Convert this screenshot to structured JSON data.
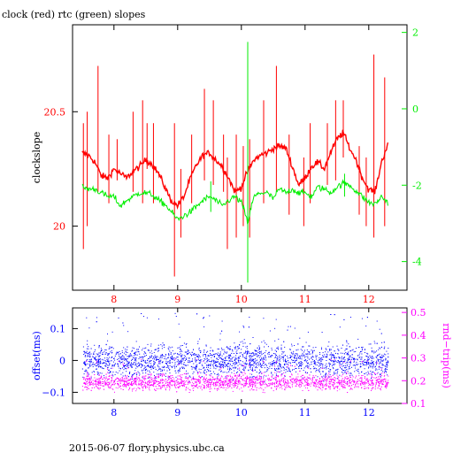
{
  "title": "clock (red) rtc (green) slopes",
  "footer": "2015-06-07 flory.physics.ubc.ca",
  "colors": {
    "clock": "#ff0000",
    "rtc": "#00ee00",
    "offset": "#0000ff",
    "rndtrip": "#ff00ff",
    "axis": "#000000"
  },
  "chart_data": [
    {
      "type": "line",
      "title": "clock (red) rtc (green) slopes",
      "ylabel": "clockslope",
      "y2label": "",
      "xlim": [
        7.35,
        12.6
      ],
      "ylim": [
        19.72,
        20.88
      ],
      "y2lim": [
        -4.75,
        2.2
      ],
      "x_ticks": [
        "8",
        "9",
        "10",
        "11",
        "12"
      ],
      "y_ticks": [
        "20",
        "20.5"
      ],
      "y2_ticks": [
        "2",
        "0",
        "-2",
        "-4"
      ],
      "series": [
        {
          "name": "clock",
          "axis": "left",
          "points": [
            [
              7.5,
              20.32
            ],
            [
              7.6,
              20.31
            ],
            [
              7.7,
              20.28
            ],
            [
              7.8,
              20.22
            ],
            [
              7.9,
              20.21
            ],
            [
              8.0,
              20.25
            ],
            [
              8.1,
              20.23
            ],
            [
              8.2,
              20.21
            ],
            [
              8.3,
              20.24
            ],
            [
              8.4,
              20.26
            ],
            [
              8.5,
              20.29
            ],
            [
              8.6,
              20.27
            ],
            [
              8.7,
              20.23
            ],
            [
              8.8,
              20.17
            ],
            [
              8.9,
              20.11
            ],
            [
              9.0,
              20.09
            ],
            [
              9.1,
              20.13
            ],
            [
              9.2,
              20.21
            ],
            [
              9.3,
              20.27
            ],
            [
              9.4,
              20.31
            ],
            [
              9.5,
              20.32
            ],
            [
              9.6,
              20.29
            ],
            [
              9.7,
              20.26
            ],
            [
              9.8,
              20.21
            ],
            [
              9.9,
              20.15
            ],
            [
              10.0,
              20.17
            ],
            [
              10.1,
              20.24
            ],
            [
              10.2,
              20.29
            ],
            [
              10.3,
              20.31
            ],
            [
              10.4,
              20.32
            ],
            [
              10.5,
              20.34
            ],
            [
              10.6,
              20.35
            ],
            [
              10.7,
              20.34
            ],
            [
              10.8,
              20.26
            ],
            [
              10.9,
              20.18
            ],
            [
              11.0,
              20.21
            ],
            [
              11.1,
              20.26
            ],
            [
              11.2,
              20.28
            ],
            [
              11.3,
              20.25
            ],
            [
              11.4,
              20.32
            ],
            [
              11.5,
              20.38
            ],
            [
              11.6,
              20.41
            ],
            [
              11.7,
              20.34
            ],
            [
              11.8,
              20.29
            ],
            [
              11.9,
              20.21
            ],
            [
              12.0,
              20.16
            ],
            [
              12.1,
              20.15
            ],
            [
              12.2,
              20.28
            ],
            [
              12.3,
              20.36
            ]
          ],
          "spikes": [
            [
              7.52,
              19.9,
              20.45
            ],
            [
              7.58,
              20.0,
              20.5
            ],
            [
              7.75,
              20.15,
              20.7
            ],
            [
              7.92,
              20.1,
              20.4
            ],
            [
              8.05,
              20.2,
              20.38
            ],
            [
              8.3,
              20.15,
              20.5
            ],
            [
              8.45,
              20.1,
              20.55
            ],
            [
              8.52,
              20.25,
              20.45
            ],
            [
              8.62,
              20.1,
              20.45
            ],
            [
              8.95,
              19.78,
              20.45
            ],
            [
              9.05,
              19.95,
              20.25
            ],
            [
              9.22,
              20.1,
              20.4
            ],
            [
              9.42,
              20.2,
              20.6
            ],
            [
              9.56,
              20.18,
              20.55
            ],
            [
              9.72,
              20.15,
              20.4
            ],
            [
              9.78,
              19.9,
              20.3
            ],
            [
              9.92,
              19.95,
              20.4
            ],
            [
              10.03,
              20.0,
              20.35
            ],
            [
              10.13,
              19.95,
              20.38
            ],
            [
              10.35,
              20.1,
              20.55
            ],
            [
              10.55,
              20.15,
              20.7
            ],
            [
              10.75,
              20.05,
              20.4
            ],
            [
              10.98,
              20.0,
              20.3
            ],
            [
              11.08,
              20.1,
              20.45
            ],
            [
              11.35,
              20.18,
              20.45
            ],
            [
              11.48,
              20.2,
              20.55
            ],
            [
              11.6,
              20.3,
              20.55
            ],
            [
              11.85,
              20.05,
              20.35
            ],
            [
              11.96,
              20.0,
              20.3
            ],
            [
              12.08,
              19.95,
              20.75
            ],
            [
              12.25,
              20.0,
              20.65
            ]
          ]
        },
        {
          "name": "rtc",
          "axis": "right",
          "points": [
            [
              7.5,
              -2.05
            ],
            [
              7.6,
              -2.1
            ],
            [
              7.7,
              -2.1
            ],
            [
              7.8,
              -2.2
            ],
            [
              7.9,
              -2.3
            ],
            [
              8.0,
              -2.3
            ],
            [
              8.1,
              -2.55
            ],
            [
              8.2,
              -2.4
            ],
            [
              8.3,
              -2.3
            ],
            [
              8.4,
              -2.2
            ],
            [
              8.5,
              -2.2
            ],
            [
              8.6,
              -2.25
            ],
            [
              8.7,
              -2.4
            ],
            [
              8.8,
              -2.5
            ],
            [
              8.9,
              -2.7
            ],
            [
              9.0,
              -2.9
            ],
            [
              9.1,
              -2.8
            ],
            [
              9.2,
              -2.7
            ],
            [
              9.3,
              -2.55
            ],
            [
              9.4,
              -2.4
            ],
            [
              9.5,
              -2.3
            ],
            [
              9.6,
              -2.4
            ],
            [
              9.7,
              -2.55
            ],
            [
              9.8,
              -2.4
            ],
            [
              9.9,
              -2.3
            ],
            [
              10.0,
              -2.45
            ],
            [
              10.05,
              -2.7
            ],
            [
              10.1,
              -3.0
            ],
            [
              10.15,
              -2.6
            ],
            [
              10.2,
              -2.3
            ],
            [
              10.3,
              -2.2
            ],
            [
              10.4,
              -2.2
            ],
            [
              10.5,
              -2.35
            ],
            [
              10.6,
              -2.1
            ],
            [
              10.7,
              -2.2
            ],
            [
              10.8,
              -2.1
            ],
            [
              10.9,
              -2.2
            ],
            [
              11.0,
              -2.2
            ],
            [
              11.1,
              -2.3
            ],
            [
              11.2,
              -2.05
            ],
            [
              11.3,
              -2.1
            ],
            [
              11.4,
              -2.2
            ],
            [
              11.5,
              -2.05
            ],
            [
              11.6,
              -1.95
            ],
            [
              11.7,
              -2.0
            ],
            [
              11.8,
              -2.15
            ],
            [
              11.9,
              -2.3
            ],
            [
              12.0,
              -2.45
            ],
            [
              12.1,
              -2.5
            ],
            [
              12.2,
              -2.3
            ],
            [
              12.3,
              -2.45
            ]
          ],
          "spikes": [
            [
              10.1,
              -4.55,
              1.75
            ],
            [
              9.52,
              -2.7,
              -1.9
            ],
            [
              11.62,
              -2.3,
              -1.7
            ]
          ]
        }
      ]
    },
    {
      "type": "scatter",
      "ylabel": "offset(ms)",
      "y2label": "rnd−trip(ms)",
      "xlim": [
        7.35,
        12.6
      ],
      "ylim": [
        -0.135,
        0.165
      ],
      "y2lim": [
        0.1,
        0.52
      ],
      "x_ticks": [
        "8",
        "9",
        "10",
        "11",
        "12"
      ],
      "y_ticks": [
        "0.1",
        "0",
        "−0.1"
      ],
      "y2_ticks": [
        "0.5",
        "0.4",
        "0.3",
        "0.2",
        "0.1"
      ],
      "series": [
        {
          "name": "offset",
          "axis": "left",
          "center": 0.0,
          "spread": 0.025,
          "x_range": [
            7.5,
            12.3
          ]
        },
        {
          "name": "rnd-trip",
          "axis": "right",
          "center": 0.195,
          "spread": 0.017,
          "x_range": [
            7.5,
            12.3
          ]
        }
      ]
    }
  ]
}
